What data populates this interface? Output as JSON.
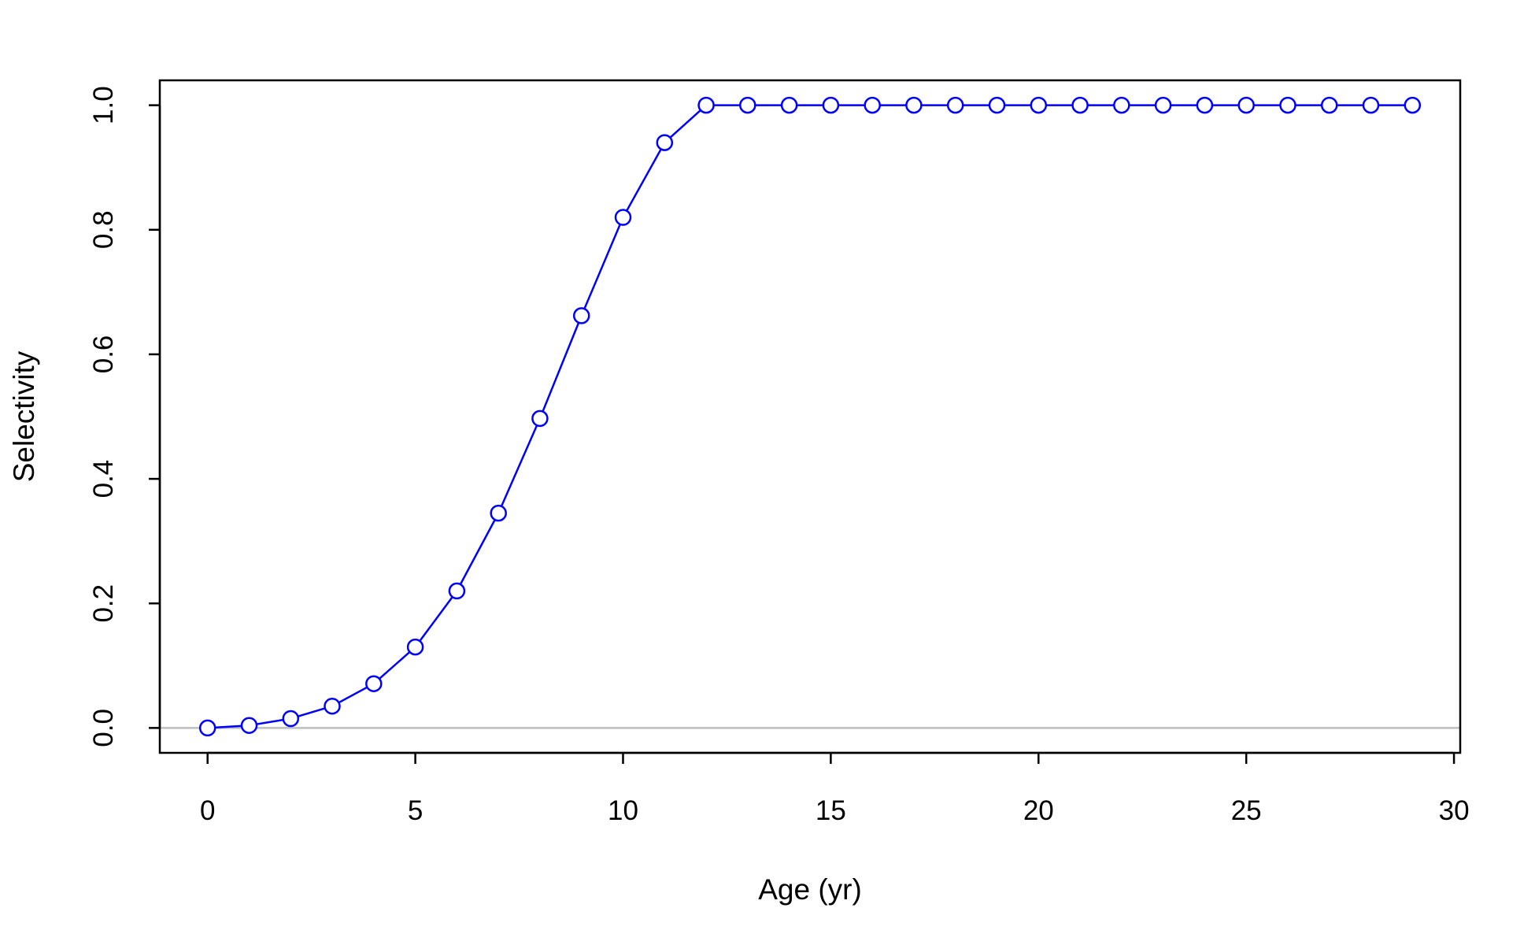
{
  "chart_data": {
    "type": "line",
    "title": "",
    "xlabel": "Age (yr)",
    "ylabel": "Selectivity",
    "xlim": [
      -1.15,
      30.15
    ],
    "ylim": [
      -0.04,
      1.04
    ],
    "x_ticks": [
      0,
      5,
      10,
      15,
      20,
      25,
      30
    ],
    "x_tick_labels": [
      "0",
      "5",
      "10",
      "15",
      "20",
      "25",
      "30"
    ],
    "y_ticks": [
      0.0,
      0.2,
      0.4,
      0.6,
      0.8,
      1.0
    ],
    "y_tick_labels": [
      "0.0",
      "0.2",
      "0.4",
      "0.6",
      "0.8",
      "1.0"
    ],
    "grid": false,
    "legend": "none",
    "reference_line": {
      "y": 0,
      "color": "#bebebe"
    },
    "series": [
      {
        "color": "#0000ff",
        "marker": "open-circle",
        "x": [
          0,
          1,
          2,
          3,
          4,
          5,
          6,
          7,
          8,
          9,
          10,
          11,
          12,
          13,
          14,
          15,
          16,
          17,
          18,
          19,
          20,
          21,
          22,
          23,
          24,
          25,
          26,
          27,
          28,
          29
        ],
        "y": [
          0.0,
          0.004,
          0.015,
          0.035,
          0.071,
          0.13,
          0.22,
          0.345,
          0.497,
          0.662,
          0.82,
          0.94,
          1.0,
          1.0,
          1.0,
          1.0,
          1.0,
          1.0,
          1.0,
          1.0,
          1.0,
          1.0,
          1.0,
          1.0,
          1.0,
          1.0,
          1.0,
          1.0,
          1.0,
          1.0
        ]
      }
    ]
  }
}
